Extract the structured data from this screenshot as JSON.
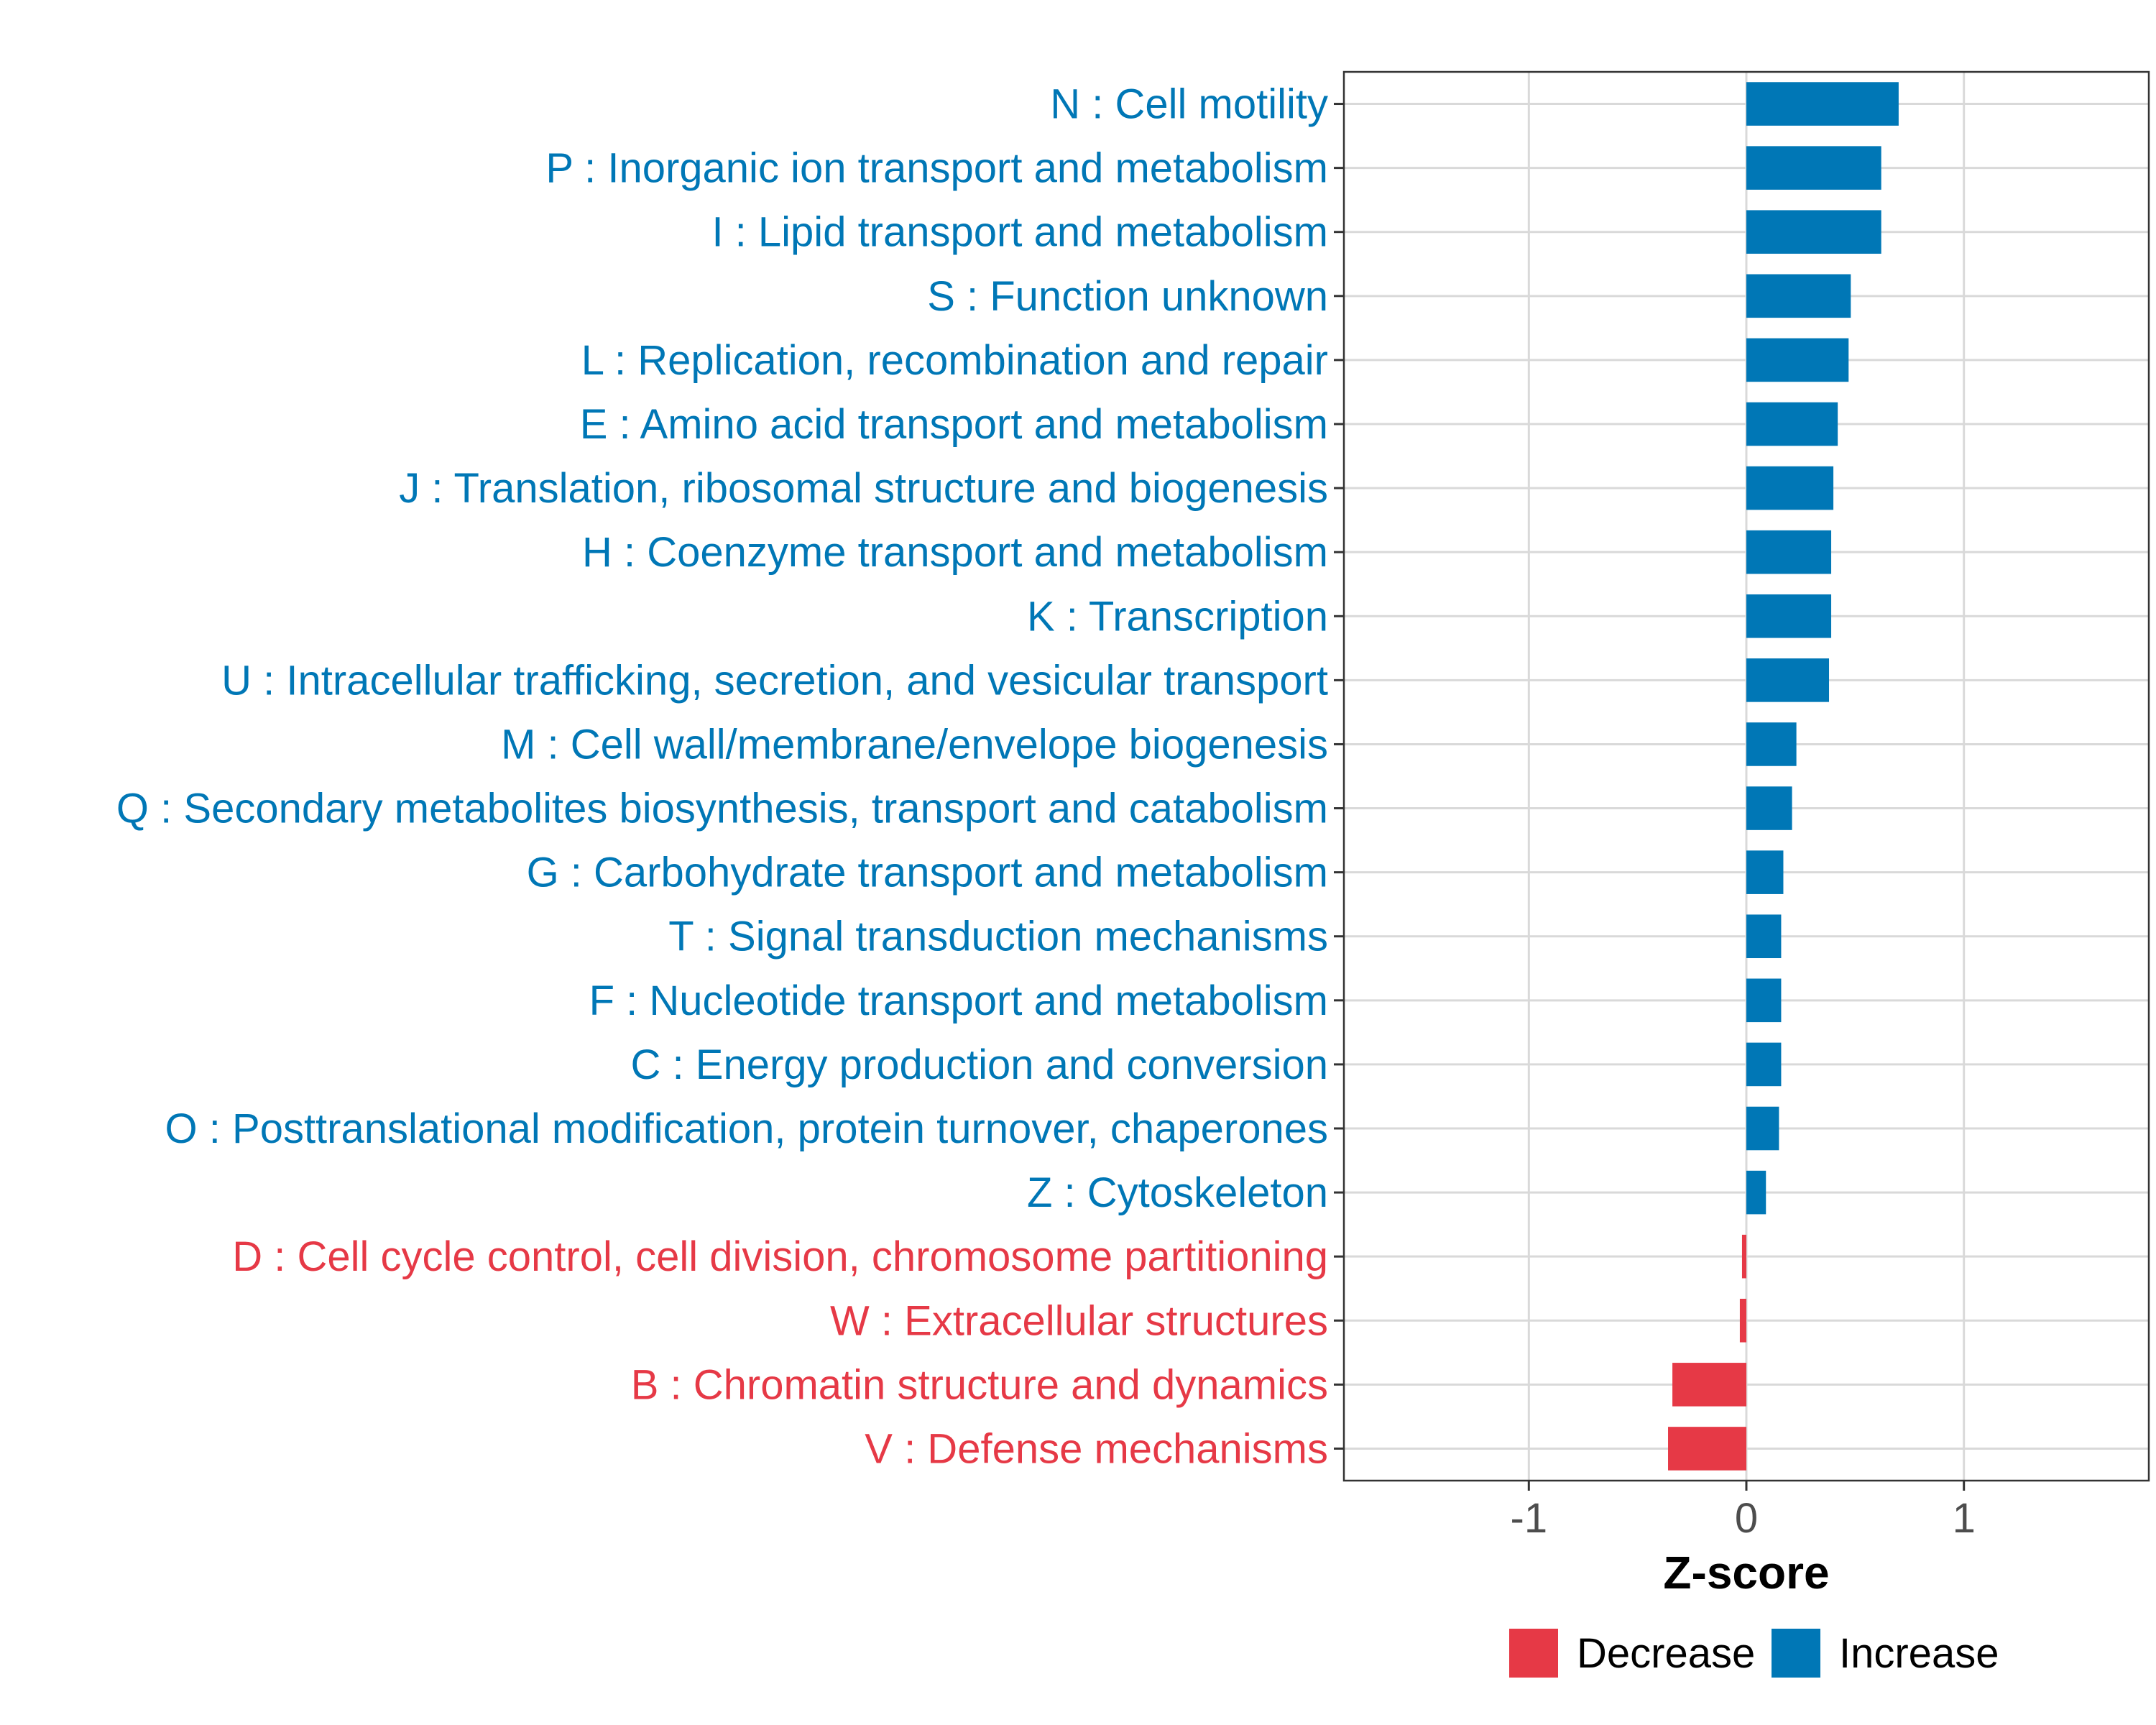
{
  "chart_data": {
    "type": "bar",
    "orientation": "horizontal",
    "xlabel": "Z-score",
    "ylabel": "",
    "xlim": [
      -1.85,
      1.85
    ],
    "xticks": [
      -1,
      0,
      1
    ],
    "xtick_labels": [
      "-1",
      "0",
      "1"
    ],
    "grid": true,
    "legend_position": "bottom",
    "colors": {
      "Decrease": "#E63946",
      "Increase": "#0077B6",
      "axis_text": "#4D4D4D",
      "grid": "#D9D9D9"
    },
    "legend": [
      {
        "label": "Decrease",
        "color": "#E63946"
      },
      {
        "label": "Increase",
        "color": "#0077B6"
      }
    ],
    "categories": [
      "N : Cell motility",
      "P : Inorganic ion transport and metabolism",
      "I : Lipid transport and metabolism",
      "S : Function unknown",
      "L : Replication, recombination and repair",
      "E : Amino acid transport and metabolism",
      "J : Translation, ribosomal structure and biogenesis",
      "H : Coenzyme transport and metabolism",
      "K : Transcription",
      "U : Intracellular trafficking, secretion, and vesicular transport",
      "M : Cell wall/membrane/envelope biogenesis",
      "Q : Secondary metabolites biosynthesis, transport and catabolism",
      "G : Carbohydrate transport and metabolism",
      "T : Signal transduction mechanisms",
      "F : Nucleotide transport and metabolism",
      "C : Energy production and conversion",
      "O : Posttranslational modification, protein turnover, chaperones",
      "Z : Cytoskeleton",
      "D : Cell cycle control, cell division, chromosome partitioning",
      "W : Extracellular structures",
      "B : Chromatin structure and dynamics",
      "V : Defense mechanisms"
    ],
    "values": [
      0.7,
      0.62,
      0.62,
      0.48,
      0.47,
      0.42,
      0.4,
      0.39,
      0.39,
      0.38,
      0.23,
      0.21,
      0.17,
      0.16,
      0.16,
      0.16,
      0.15,
      0.09,
      -0.02,
      -0.03,
      -0.34,
      -0.36
    ],
    "groups": [
      "Increase",
      "Increase",
      "Increase",
      "Increase",
      "Increase",
      "Increase",
      "Increase",
      "Increase",
      "Increase",
      "Increase",
      "Increase",
      "Increase",
      "Increase",
      "Increase",
      "Increase",
      "Increase",
      "Increase",
      "Increase",
      "Decrease",
      "Decrease",
      "Decrease",
      "Decrease"
    ]
  }
}
